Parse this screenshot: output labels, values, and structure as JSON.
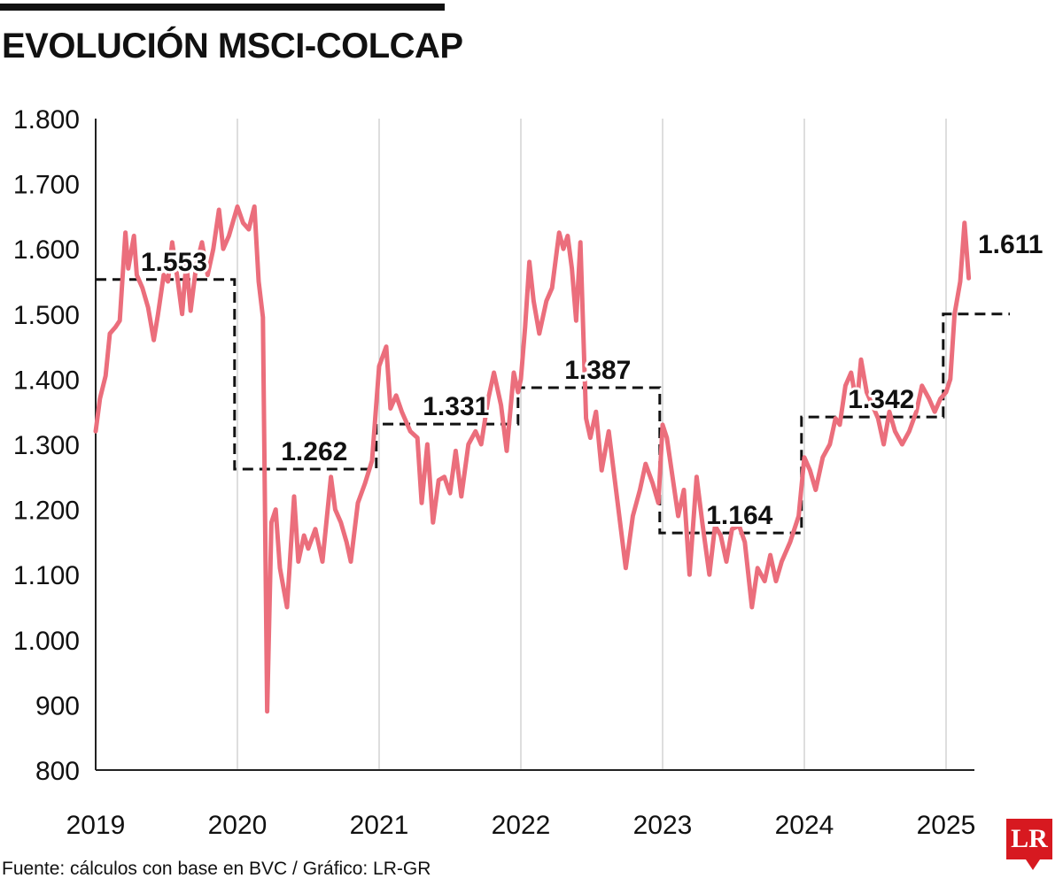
{
  "title": "EVOLUCIÓN MSCI-COLCAP",
  "source": "Fuente: cálculos con base en BVC / Gráfico: LR-GR",
  "logo_text": "LR",
  "colors": {
    "line": "#eb6e7c",
    "average": "#111111",
    "grid": "#bdbdbd",
    "brand": "#d71920"
  },
  "chart_data": {
    "type": "line",
    "title": "EVOLUCIÓN MSCI-COLCAP",
    "xlabel": "",
    "ylabel": "",
    "ylim": [
      800,
      1800
    ],
    "xlim": [
      2019,
      2025.2
    ],
    "grid": true,
    "x_ticks": [
      "2019",
      "2020",
      "2021",
      "2022",
      "2023",
      "2024",
      "2025"
    ],
    "y_ticks": [
      "1.800",
      "1.700",
      "1.600",
      "1.500",
      "1.400",
      "1.300",
      "1.200",
      "1.100",
      "1.000",
      "900",
      "800"
    ],
    "series": [
      {
        "points": [
          [
            2019.0,
            1320
          ],
          [
            2019.03,
            1370
          ],
          [
            2019.07,
            1405
          ],
          [
            2019.1,
            1470
          ],
          [
            2019.14,
            1480
          ],
          [
            2019.17,
            1490
          ],
          [
            2019.21,
            1625
          ],
          [
            2019.23,
            1570
          ],
          [
            2019.27,
            1620
          ],
          [
            2019.29,
            1560
          ],
          [
            2019.33,
            1540
          ],
          [
            2019.37,
            1510
          ],
          [
            2019.41,
            1460
          ],
          [
            2019.44,
            1500
          ],
          [
            2019.48,
            1560
          ],
          [
            2019.51,
            1550
          ],
          [
            2019.54,
            1610
          ],
          [
            2019.58,
            1550
          ],
          [
            2019.61,
            1500
          ],
          [
            2019.64,
            1580
          ],
          [
            2019.67,
            1505
          ],
          [
            2019.71,
            1575
          ],
          [
            2019.75,
            1610
          ],
          [
            2019.79,
            1560
          ],
          [
            2019.83,
            1600
          ],
          [
            2019.87,
            1660
          ],
          [
            2019.9,
            1600
          ],
          [
            2019.94,
            1620
          ],
          [
            2020.0,
            1665
          ],
          [
            2020.04,
            1640
          ],
          [
            2020.08,
            1630
          ],
          [
            2020.12,
            1665
          ],
          [
            2020.15,
            1550
          ],
          [
            2020.18,
            1495
          ],
          [
            2020.21,
            890
          ],
          [
            2020.24,
            1180
          ],
          [
            2020.27,
            1200
          ],
          [
            2020.3,
            1110
          ],
          [
            2020.35,
            1050
          ],
          [
            2020.4,
            1220
          ],
          [
            2020.43,
            1120
          ],
          [
            2020.47,
            1160
          ],
          [
            2020.5,
            1140
          ],
          [
            2020.55,
            1170
          ],
          [
            2020.6,
            1120
          ],
          [
            2020.66,
            1250
          ],
          [
            2020.69,
            1200
          ],
          [
            2020.73,
            1180
          ],
          [
            2020.77,
            1150
          ],
          [
            2020.8,
            1120
          ],
          [
            2020.85,
            1210
          ],
          [
            2020.9,
            1240
          ],
          [
            2020.95,
            1275
          ],
          [
            2021.0,
            1420
          ],
          [
            2021.05,
            1450
          ],
          [
            2021.08,
            1355
          ],
          [
            2021.12,
            1375
          ],
          [
            2021.16,
            1350
          ],
          [
            2021.22,
            1320
          ],
          [
            2021.27,
            1310
          ],
          [
            2021.3,
            1210
          ],
          [
            2021.34,
            1300
          ],
          [
            2021.38,
            1180
          ],
          [
            2021.42,
            1245
          ],
          [
            2021.46,
            1250
          ],
          [
            2021.5,
            1225
          ],
          [
            2021.54,
            1290
          ],
          [
            2021.58,
            1220
          ],
          [
            2021.63,
            1300
          ],
          [
            2021.68,
            1320
          ],
          [
            2021.72,
            1300
          ],
          [
            2021.77,
            1370
          ],
          [
            2021.81,
            1410
          ],
          [
            2021.86,
            1360
          ],
          [
            2021.9,
            1290
          ],
          [
            2021.95,
            1410
          ],
          [
            2021.98,
            1380
          ],
          [
            2022.0,
            1400
          ],
          [
            2022.03,
            1480
          ],
          [
            2022.06,
            1580
          ],
          [
            2022.09,
            1520
          ],
          [
            2022.13,
            1470
          ],
          [
            2022.18,
            1520
          ],
          [
            2022.22,
            1540
          ],
          [
            2022.27,
            1625
          ],
          [
            2022.3,
            1600
          ],
          [
            2022.33,
            1620
          ],
          [
            2022.36,
            1570
          ],
          [
            2022.39,
            1490
          ],
          [
            2022.42,
            1610
          ],
          [
            2022.46,
            1340
          ],
          [
            2022.49,
            1310
          ],
          [
            2022.53,
            1350
          ],
          [
            2022.57,
            1260
          ],
          [
            2022.62,
            1320
          ],
          [
            2022.66,
            1250
          ],
          [
            2022.7,
            1180
          ],
          [
            2022.74,
            1110
          ],
          [
            2022.79,
            1190
          ],
          [
            2022.84,
            1230
          ],
          [
            2022.88,
            1270
          ],
          [
            2022.93,
            1240
          ],
          [
            2022.97,
            1210
          ],
          [
            2023.0,
            1330
          ],
          [
            2023.03,
            1310
          ],
          [
            2023.07,
            1250
          ],
          [
            2023.11,
            1190
          ],
          [
            2023.15,
            1230
          ],
          [
            2023.19,
            1100
          ],
          [
            2023.24,
            1250
          ],
          [
            2023.28,
            1180
          ],
          [
            2023.33,
            1100
          ],
          [
            2023.37,
            1175
          ],
          [
            2023.41,
            1160
          ],
          [
            2023.45,
            1120
          ],
          [
            2023.49,
            1170
          ],
          [
            2023.54,
            1175
          ],
          [
            2023.58,
            1150
          ],
          [
            2023.63,
            1050
          ],
          [
            2023.67,
            1110
          ],
          [
            2023.72,
            1090
          ],
          [
            2023.76,
            1130
          ],
          [
            2023.8,
            1090
          ],
          [
            2023.84,
            1120
          ],
          [
            2023.9,
            1150
          ],
          [
            2023.96,
            1190
          ],
          [
            2024.0,
            1280
          ],
          [
            2024.04,
            1260
          ],
          [
            2024.08,
            1230
          ],
          [
            2024.13,
            1280
          ],
          [
            2024.18,
            1300
          ],
          [
            2024.22,
            1340
          ],
          [
            2024.25,
            1330
          ],
          [
            2024.29,
            1390
          ],
          [
            2024.33,
            1410
          ],
          [
            2024.37,
            1360
          ],
          [
            2024.4,
            1430
          ],
          [
            2024.44,
            1380
          ],
          [
            2024.48,
            1360
          ],
          [
            2024.52,
            1340
          ],
          [
            2024.56,
            1300
          ],
          [
            2024.6,
            1350
          ],
          [
            2024.64,
            1320
          ],
          [
            2024.69,
            1300
          ],
          [
            2024.74,
            1320
          ],
          [
            2024.79,
            1350
          ],
          [
            2024.83,
            1390
          ],
          [
            2024.88,
            1370
          ],
          [
            2024.92,
            1350
          ],
          [
            2024.96,
            1370
          ],
          [
            2025.0,
            1380
          ],
          [
            2025.03,
            1400
          ],
          [
            2025.06,
            1500
          ],
          [
            2025.1,
            1550
          ],
          [
            2025.13,
            1640
          ],
          [
            2025.16,
            1555
          ]
        ]
      }
    ],
    "averages": [
      {
        "x_start": 2019.0,
        "x_end": 2019.98,
        "value": 1553,
        "label": "1.553"
      },
      {
        "x_start": 2019.98,
        "x_end": 2020.98,
        "value": 1262,
        "label": "1.262"
      },
      {
        "x_start": 2020.98,
        "x_end": 2021.98,
        "value": 1331,
        "label": "1.331"
      },
      {
        "x_start": 2021.98,
        "x_end": 2022.98,
        "value": 1387,
        "label": "1.387"
      },
      {
        "x_start": 2022.98,
        "x_end": 2023.98,
        "value": 1164,
        "label": "1.164"
      },
      {
        "x_start": 2023.98,
        "x_end": 2024.98,
        "value": 1342,
        "label": "1.342"
      },
      {
        "x_start": 2024.98,
        "x_end": 2025.45,
        "value": 1500,
        "label": ""
      }
    ],
    "annotations": [
      {
        "text": "1.611",
        "x": 2025.2,
        "y": 1611
      }
    ]
  }
}
